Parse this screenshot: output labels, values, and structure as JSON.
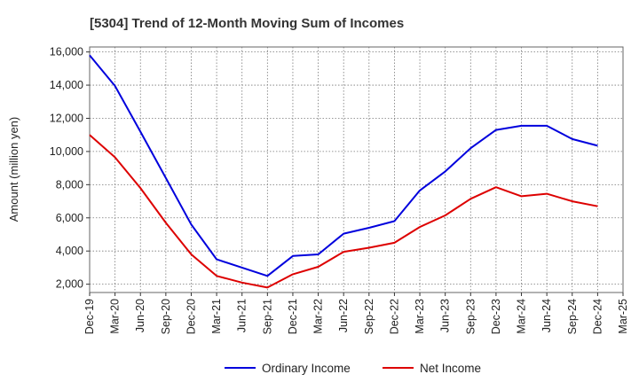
{
  "chart_data": {
    "type": "line",
    "title": "[5304]  Trend of 12-Month Moving Sum of Incomes",
    "xlabel": "",
    "ylabel": "Amount (million yen)",
    "ylim": [
      1500,
      16300
    ],
    "yticks": [
      2000,
      4000,
      6000,
      8000,
      10000,
      12000,
      14000,
      16000
    ],
    "ytick_labels": [
      "2,000",
      "4,000",
      "6,000",
      "8,000",
      "10,000",
      "12,000",
      "14,000",
      "16,000"
    ],
    "categories": [
      "Dec-19",
      "Mar-20",
      "Jun-20",
      "Sep-20",
      "Dec-20",
      "Mar-21",
      "Jun-21",
      "Sep-21",
      "Dec-21",
      "Mar-22",
      "Jun-22",
      "Sep-22",
      "Dec-22",
      "Mar-23",
      "Jun-23",
      "Sep-23",
      "Dec-23",
      "Mar-24",
      "Jun-24",
      "Sep-24",
      "Dec-24",
      "Mar-25"
    ],
    "grid": true,
    "legend_position": "bottom",
    "series": [
      {
        "name": "Ordinary Income",
        "color": "#0000dd",
        "values": [
          15800,
          13950,
          11200,
          8400,
          5600,
          3500,
          3000,
          2500,
          3700,
          3800,
          5050,
          5400,
          5800,
          7650,
          8800,
          10200,
          11300,
          11550,
          11550,
          10750,
          10350,
          null
        ]
      },
      {
        "name": "Net Income",
        "color": "#dd0000",
        "values": [
          11000,
          9650,
          7800,
          5700,
          3800,
          2500,
          2100,
          1800,
          2600,
          3050,
          3950,
          4200,
          4500,
          5450,
          6150,
          7150,
          7850,
          7300,
          7450,
          7000,
          6700,
          null
        ]
      }
    ]
  }
}
